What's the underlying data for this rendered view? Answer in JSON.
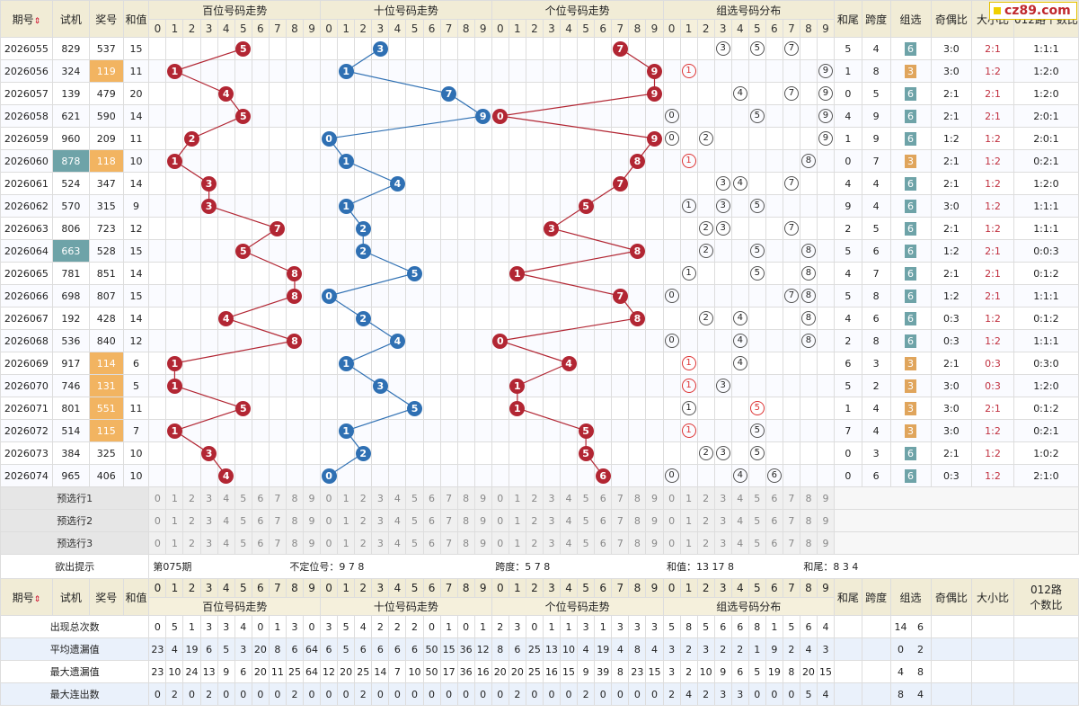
{
  "logo": {
    "text": "cz89.com"
  },
  "colors": {
    "red_ball": "#b22633",
    "blue_ball": "#2f70b3",
    "group6": "#6ea3a8",
    "group3": "#e0a55c",
    "header_bg": "#f1ecd6"
  },
  "headers": {
    "period": "期号",
    "trial": "试机",
    "prize": "奖号",
    "sum": "和值",
    "hundreds": "百位号码走势",
    "tens": "十位号码走势",
    "units": "个位号码走势",
    "group_dist": "组选号码分布",
    "tail": "和尾",
    "span": "跨度",
    "group": "组选",
    "odd_even": "奇偶比",
    "big_small": "大小比",
    "road012": "012路个数比",
    "road012_l1": "012路",
    "road012_l2": "个数比"
  },
  "digits": [
    "0",
    "1",
    "2",
    "3",
    "4",
    "5",
    "6",
    "7",
    "8",
    "9"
  ],
  "rows": [
    {
      "period": "2026055",
      "trial": "829",
      "prize": "537",
      "sum": "15",
      "h": 5,
      "t": 3,
      "u": 7,
      "tail": "5",
      "span": "4",
      "group": "6",
      "oe": "3:0",
      "bs": "2:1",
      "r012": "1:1:1",
      "trial_hl": false,
      "prize_hl": false
    },
    {
      "period": "2026056",
      "trial": "324",
      "prize": "119",
      "sum": "11",
      "h": 1,
      "t": 1,
      "u": 9,
      "tail": "1",
      "span": "8",
      "group": "3",
      "oe": "3:0",
      "bs": "1:2",
      "r012": "1:2:0",
      "trial_hl": false,
      "prize_hl": true
    },
    {
      "period": "2026057",
      "trial": "139",
      "prize": "479",
      "sum": "20",
      "h": 4,
      "t": 7,
      "u": 9,
      "tail": "0",
      "span": "5",
      "group": "6",
      "oe": "2:1",
      "bs": "2:1",
      "r012": "1:2:0",
      "trial_hl": false,
      "prize_hl": false
    },
    {
      "period": "2026058",
      "trial": "621",
      "prize": "590",
      "sum": "14",
      "h": 5,
      "t": 9,
      "u": 0,
      "tail": "4",
      "span": "9",
      "group": "6",
      "oe": "2:1",
      "bs": "2:1",
      "r012": "2:0:1",
      "trial_hl": false,
      "prize_hl": false
    },
    {
      "period": "2026059",
      "trial": "960",
      "prize": "209",
      "sum": "11",
      "h": 2,
      "t": 0,
      "u": 9,
      "tail": "1",
      "span": "9",
      "group": "6",
      "oe": "1:2",
      "bs": "1:2",
      "r012": "2:0:1",
      "trial_hl": false,
      "prize_hl": false
    },
    {
      "period": "2026060",
      "trial": "878",
      "prize": "118",
      "sum": "10",
      "h": 1,
      "t": 1,
      "u": 8,
      "tail": "0",
      "span": "7",
      "group": "3",
      "oe": "2:1",
      "bs": "1:2",
      "r012": "0:2:1",
      "trial_hl": true,
      "prize_hl": true
    },
    {
      "period": "2026061",
      "trial": "524",
      "prize": "347",
      "sum": "14",
      "h": 3,
      "t": 4,
      "u": 7,
      "tail": "4",
      "span": "4",
      "group": "6",
      "oe": "2:1",
      "bs": "1:2",
      "r012": "1:2:0",
      "trial_hl": false,
      "prize_hl": false
    },
    {
      "period": "2026062",
      "trial": "570",
      "prize": "315",
      "sum": "9",
      "h": 3,
      "t": 1,
      "u": 5,
      "tail": "9",
      "span": "4",
      "group": "6",
      "oe": "3:0",
      "bs": "1:2",
      "r012": "1:1:1",
      "trial_hl": false,
      "prize_hl": false
    },
    {
      "period": "2026063",
      "trial": "806",
      "prize": "723",
      "sum": "12",
      "h": 7,
      "t": 2,
      "u": 3,
      "tail": "2",
      "span": "5",
      "group": "6",
      "oe": "2:1",
      "bs": "1:2",
      "r012": "1:1:1",
      "trial_hl": false,
      "prize_hl": false
    },
    {
      "period": "2026064",
      "trial": "663",
      "prize": "528",
      "sum": "15",
      "h": 5,
      "t": 2,
      "u": 8,
      "tail": "5",
      "span": "6",
      "group": "6",
      "oe": "1:2",
      "bs": "2:1",
      "r012": "0:0:3",
      "trial_hl": true,
      "prize_hl": false
    },
    {
      "period": "2026065",
      "trial": "781",
      "prize": "851",
      "sum": "14",
      "h": 8,
      "t": 5,
      "u": 1,
      "tail": "4",
      "span": "7",
      "group": "6",
      "oe": "2:1",
      "bs": "2:1",
      "r012": "0:1:2",
      "trial_hl": false,
      "prize_hl": false
    },
    {
      "period": "2026066",
      "trial": "698",
      "prize": "807",
      "sum": "15",
      "h": 8,
      "t": 0,
      "u": 7,
      "tail": "5",
      "span": "8",
      "group": "6",
      "oe": "1:2",
      "bs": "2:1",
      "r012": "1:1:1",
      "trial_hl": false,
      "prize_hl": false
    },
    {
      "period": "2026067",
      "trial": "192",
      "prize": "428",
      "sum": "14",
      "h": 4,
      "t": 2,
      "u": 8,
      "tail": "4",
      "span": "6",
      "group": "6",
      "oe": "0:3",
      "bs": "1:2",
      "r012": "0:1:2",
      "trial_hl": false,
      "prize_hl": false
    },
    {
      "period": "2026068",
      "trial": "536",
      "prize": "840",
      "sum": "12",
      "h": 8,
      "t": 4,
      "u": 0,
      "tail": "2",
      "span": "8",
      "group": "6",
      "oe": "0:3",
      "bs": "1:2",
      "r012": "1:1:1",
      "trial_hl": false,
      "prize_hl": false
    },
    {
      "period": "2026069",
      "trial": "917",
      "prize": "114",
      "sum": "6",
      "h": 1,
      "t": 1,
      "u": 4,
      "tail": "6",
      "span": "3",
      "group": "3",
      "oe": "2:1",
      "bs": "0:3",
      "r012": "0:3:0",
      "trial_hl": false,
      "prize_hl": true
    },
    {
      "period": "2026070",
      "trial": "746",
      "prize": "131",
      "sum": "5",
      "h": 1,
      "t": 3,
      "u": 1,
      "tail": "5",
      "span": "2",
      "group": "3",
      "oe": "3:0",
      "bs": "0:3",
      "r012": "1:2:0",
      "trial_hl": false,
      "prize_hl": true
    },
    {
      "period": "2026071",
      "trial": "801",
      "prize": "551",
      "sum": "11",
      "h": 5,
      "t": 5,
      "u": 1,
      "tail": "1",
      "span": "4",
      "group": "3",
      "oe": "3:0",
      "bs": "2:1",
      "r012": "0:1:2",
      "trial_hl": false,
      "prize_hl": true
    },
    {
      "period": "2026072",
      "trial": "514",
      "prize": "115",
      "sum": "7",
      "h": 1,
      "t": 1,
      "u": 5,
      "tail": "7",
      "span": "4",
      "group": "3",
      "oe": "3:0",
      "bs": "1:2",
      "r012": "0:2:1",
      "trial_hl": false,
      "prize_hl": true
    },
    {
      "period": "2026073",
      "trial": "384",
      "prize": "325",
      "sum": "10",
      "h": 3,
      "t": 2,
      "u": 5,
      "tail": "0",
      "span": "3",
      "group": "6",
      "oe": "2:1",
      "bs": "1:2",
      "r012": "1:0:2",
      "trial_hl": false,
      "prize_hl": false
    },
    {
      "period": "2026074",
      "trial": "965",
      "prize": "406",
      "sum": "10",
      "h": 4,
      "t": 0,
      "u": 6,
      "tail": "0",
      "span": "6",
      "group": "6",
      "oe": "0:3",
      "bs": "1:2",
      "r012": "2:1:0",
      "trial_hl": false,
      "prize_hl": false
    }
  ],
  "preselect": [
    {
      "label": "预选行1"
    },
    {
      "label": "预选行2"
    },
    {
      "label": "预选行3"
    }
  ],
  "hint": {
    "label": "欲出提示",
    "period": "第075期",
    "unfixed": "不定位号：9 7 8",
    "span": "跨度：5 7 8",
    "sum": "和值：13 17 8",
    "tail": "和尾：8 3 4"
  },
  "stats": [
    {
      "label": "出现总次数",
      "h": [
        "0",
        "5",
        "1",
        "3",
        "3",
        "4",
        "0",
        "1",
        "3",
        "0"
      ],
      "t": [
        "3",
        "5",
        "4",
        "2",
        "2",
        "2",
        "0",
        "1",
        "0",
        "1"
      ],
      "u": [
        "2",
        "3",
        "0",
        "1",
        "1",
        "3",
        "1",
        "3",
        "3",
        "3"
      ],
      "g": [
        "5",
        "8",
        "5",
        "6",
        "6",
        "8",
        "1",
        "5",
        "6",
        "4"
      ],
      "g6": "14",
      "g3": "6"
    },
    {
      "label": "平均遗漏值",
      "h": [
        "23",
        "4",
        "19",
        "6",
        "5",
        "3",
        "20",
        "8",
        "6",
        "64"
      ],
      "t": [
        "6",
        "5",
        "6",
        "6",
        "6",
        "6",
        "50",
        "15",
        "36",
        "12"
      ],
      "u": [
        "8",
        "6",
        "25",
        "13",
        "10",
        "4",
        "19",
        "4",
        "8",
        "4"
      ],
      "g": [
        "3",
        "2",
        "3",
        "2",
        "2",
        "1",
        "9",
        "2",
        "4",
        "3"
      ],
      "g6": "0",
      "g3": "2"
    },
    {
      "label": "最大遗漏值",
      "h": [
        "23",
        "10",
        "24",
        "13",
        "9",
        "6",
        "20",
        "11",
        "25",
        "64"
      ],
      "t": [
        "12",
        "20",
        "25",
        "14",
        "7",
        "10",
        "50",
        "17",
        "36",
        "16"
      ],
      "u": [
        "20",
        "20",
        "25",
        "16",
        "15",
        "9",
        "39",
        "8",
        "23",
        "15"
      ],
      "g": [
        "3",
        "2",
        "10",
        "9",
        "6",
        "5",
        "19",
        "8",
        "20",
        "15"
      ],
      "g6": "4",
      "g3": "8"
    },
    {
      "label": "最大连出数",
      "h": [
        "0",
        "2",
        "0",
        "2",
        "0",
        "0",
        "0",
        "0",
        "2",
        "0"
      ],
      "t": [
        "0",
        "0",
        "2",
        "0",
        "0",
        "0",
        "0",
        "0",
        "0",
        "0"
      ],
      "u": [
        "0",
        "2",
        "0",
        "0",
        "0",
        "2",
        "0",
        "0",
        "0",
        "0"
      ],
      "g": [
        "2",
        "4",
        "2",
        "3",
        "3",
        "0",
        "0",
        "0",
        "5",
        "4"
      ],
      "g6": "8",
      "g3": "4"
    }
  ]
}
